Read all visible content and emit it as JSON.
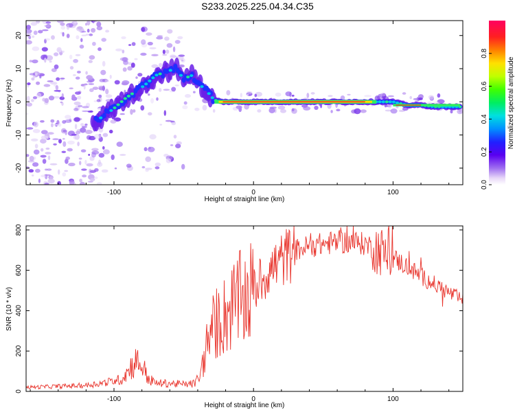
{
  "title": "S233.2025.225.04.34.C35",
  "colors": {
    "snr_line": "#e8322a",
    "spectral_blob": "#8a2be2",
    "ridge_core": "#e8322a"
  },
  "chart_data": [
    {
      "type": "heatmap",
      "name": "spectrogram",
      "xlabel": "Height of straight line (km)",
      "ylabel": "Frequency (Hz)",
      "xlim": [
        -163,
        150
      ],
      "ylim": [
        -25,
        24.5
      ],
      "xticks": [
        -100,
        0,
        100
      ],
      "yticks": [
        -20,
        -10,
        0,
        10,
        20
      ],
      "ridge": {
        "x": [
          -115,
          -108,
          -100,
          -92,
          -85,
          -78,
          -70,
          -63,
          -56,
          -50,
          -44,
          -38,
          -33,
          -28,
          -22,
          -10,
          0,
          10,
          25,
          50,
          75,
          90,
          100,
          110,
          120,
          130,
          140,
          148
        ],
        "y": [
          -6,
          -4.5,
          -2,
          1,
          3,
          5,
          8,
          9,
          10,
          7,
          8,
          5,
          3,
          0.5,
          0,
          0,
          0,
          0,
          0,
          0,
          0,
          0,
          0,
          -1,
          -1,
          -1.5,
          -1.5,
          -1.5
        ]
      },
      "colorbar": {
        "label": "Normalized spectral amplitude",
        "ticks": [
          0.0,
          0.2,
          0.4,
          0.6,
          0.8
        ],
        "range": [
          0,
          1
        ]
      }
    },
    {
      "type": "line",
      "name": "snr",
      "xlabel": "Height of straight line (km)",
      "ylabel": "SNR (10 * v/v)",
      "xlim": [
        -163,
        150
      ],
      "ylim": [
        0,
        820
      ],
      "xticks": [
        -100,
        0,
        100
      ],
      "yticks": [
        0,
        200,
        400,
        600,
        800
      ],
      "series": [
        {
          "name": "SNR",
          "envelope_x": [
            -163,
            -140,
            -120,
            -105,
            -95,
            -90,
            -85,
            -80,
            -75,
            -70,
            -60,
            -50,
            -42,
            -38,
            -35,
            -32,
            -28,
            -24,
            -20,
            -15,
            -10,
            -5,
            0,
            5,
            10,
            20,
            30,
            40,
            50,
            60,
            70,
            80,
            90,
            100,
            110,
            120,
            130,
            140,
            150
          ],
          "envelope_y": [
            20,
            25,
            30,
            45,
            60,
            100,
            150,
            130,
            60,
            40,
            40,
            35,
            40,
            80,
            180,
            280,
            330,
            350,
            380,
            420,
            450,
            470,
            500,
            540,
            590,
            650,
            700,
            720,
            730,
            740,
            740,
            730,
            700,
            660,
            620,
            570,
            530,
            490,
            450
          ]
        }
      ]
    }
  ]
}
